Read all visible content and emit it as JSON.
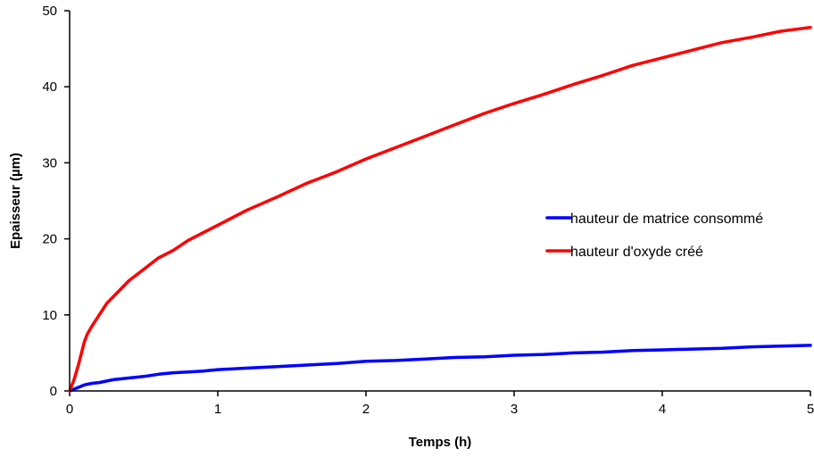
{
  "chart_data": {
    "type": "line",
    "title": "",
    "xlabel": "Temps (h)",
    "ylabel": "Epaisseur (µm)",
    "xlim": [
      0,
      5
    ],
    "ylim": [
      0,
      50
    ],
    "xticks": [
      0,
      1,
      2,
      3,
      4,
      5
    ],
    "yticks": [
      0,
      10,
      20,
      30,
      40,
      50
    ],
    "grid": false,
    "legend_position": "right",
    "series": [
      {
        "name": "hauteur de matrice consommé",
        "color": "#0000ff",
        "x": [
          0,
          0.05,
          0.1,
          0.15,
          0.2,
          0.25,
          0.3,
          0.35,
          0.4,
          0.5,
          0.6,
          0.7,
          0.8,
          0.9,
          1.0,
          1.2,
          1.4,
          1.6,
          1.8,
          2.0,
          2.2,
          2.4,
          2.6,
          2.8,
          3.0,
          3.2,
          3.4,
          3.6,
          3.8,
          4.0,
          4.2,
          4.4,
          4.6,
          4.8,
          5.0
        ],
        "y": [
          0,
          0.4,
          0.8,
          1.0,
          1.1,
          1.3,
          1.5,
          1.6,
          1.7,
          1.9,
          2.2,
          2.4,
          2.5,
          2.6,
          2.8,
          3.0,
          3.2,
          3.4,
          3.6,
          3.9,
          4.0,
          4.2,
          4.4,
          4.5,
          4.7,
          4.8,
          5.0,
          5.1,
          5.3,
          5.4,
          5.5,
          5.6,
          5.8,
          5.9,
          6.0
        ]
      },
      {
        "name": "hauteur d'oxyde créé",
        "color": "#ff0000",
        "x": [
          0,
          0.03,
          0.06,
          0.08,
          0.1,
          0.12,
          0.15,
          0.2,
          0.25,
          0.3,
          0.35,
          0.4,
          0.5,
          0.6,
          0.7,
          0.8,
          0.9,
          1.0,
          1.2,
          1.4,
          1.6,
          1.8,
          2.0,
          2.2,
          2.4,
          2.6,
          2.8,
          3.0,
          3.2,
          3.4,
          3.6,
          3.8,
          4.0,
          4.2,
          4.4,
          4.6,
          4.8,
          5.0
        ],
        "y": [
          0,
          1.5,
          3.5,
          5.0,
          6.5,
          7.5,
          8.5,
          10.0,
          11.5,
          12.5,
          13.5,
          14.5,
          16.0,
          17.5,
          18.5,
          19.8,
          20.8,
          21.8,
          23.8,
          25.5,
          27.3,
          28.8,
          30.5,
          32.0,
          33.5,
          35.0,
          36.5,
          37.8,
          39.0,
          40.3,
          41.5,
          42.8,
          43.8,
          44.8,
          45.8,
          46.5,
          47.3,
          47.8
        ]
      }
    ]
  }
}
